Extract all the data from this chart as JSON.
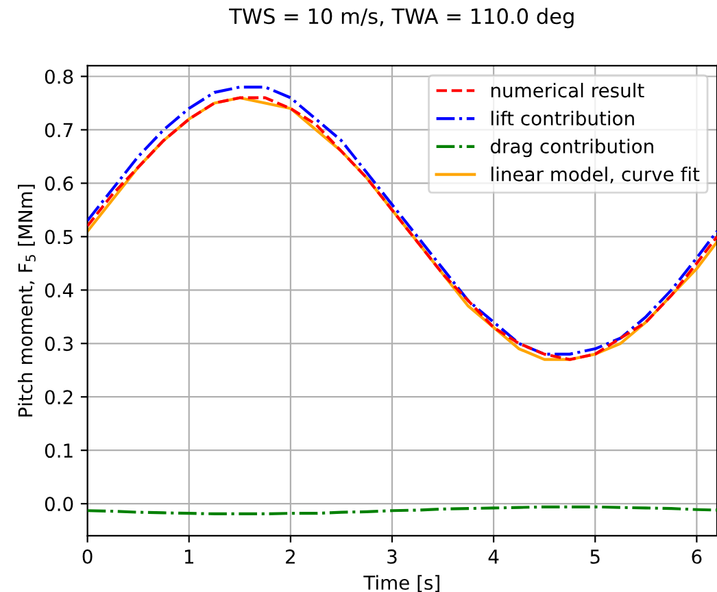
{
  "chart_data": {
    "type": "line",
    "title": "TWS = 10 m/s, TWA = 110.0 deg",
    "xlabel": "Time [s]",
    "ylabel": "Pitch moment, F$_{5}$ [MNm]",
    "x": [
      0,
      0.25,
      0.5,
      0.75,
      1.0,
      1.25,
      1.5,
      1.75,
      2.0,
      2.25,
      2.5,
      2.75,
      3.0,
      3.25,
      3.5,
      3.75,
      4.0,
      4.25,
      4.5,
      4.75,
      5.0,
      5.25,
      5.5,
      5.75,
      6.0,
      6.2
    ],
    "series": [
      {
        "name": "numerical result",
        "color": "#ff0000",
        "line_style": "dashed",
        "values": [
          0.52,
          0.58,
          0.63,
          0.68,
          0.72,
          0.75,
          0.76,
          0.76,
          0.74,
          0.71,
          0.66,
          0.61,
          0.55,
          0.49,
          0.43,
          0.38,
          0.33,
          0.3,
          0.28,
          0.27,
          0.28,
          0.31,
          0.34,
          0.39,
          0.45,
          0.5
        ]
      },
      {
        "name": "lift contribution",
        "color": "#0000ff",
        "line_style": "dashdot",
        "values": [
          0.53,
          0.59,
          0.65,
          0.7,
          0.74,
          0.77,
          0.78,
          0.78,
          0.76,
          0.72,
          0.68,
          0.62,
          0.56,
          0.5,
          0.44,
          0.38,
          0.34,
          0.3,
          0.28,
          0.28,
          0.29,
          0.31,
          0.35,
          0.4,
          0.46,
          0.51
        ]
      },
      {
        "name": "drag contribution",
        "color": "#008000",
        "line_style": "dashdot",
        "values": [
          -0.013,
          -0.014,
          -0.016,
          -0.017,
          -0.018,
          -0.019,
          -0.019,
          -0.019,
          -0.018,
          -0.018,
          -0.016,
          -0.015,
          -0.013,
          -0.012,
          -0.01,
          -0.009,
          -0.008,
          -0.007,
          -0.006,
          -0.006,
          -0.006,
          -0.007,
          -0.008,
          -0.009,
          -0.011,
          -0.012
        ]
      },
      {
        "name": "linear model, curve fit",
        "color": "#ffa500",
        "line_style": "solid",
        "values": [
          0.51,
          0.57,
          0.63,
          0.68,
          0.72,
          0.75,
          0.76,
          0.75,
          0.74,
          0.7,
          0.66,
          0.61,
          0.55,
          0.49,
          0.43,
          0.37,
          0.33,
          0.29,
          0.27,
          0.27,
          0.28,
          0.3,
          0.34,
          0.39,
          0.44,
          0.49
        ]
      }
    ],
    "xlim": [
      0,
      6.2
    ],
    "xticks": [
      0,
      1,
      2,
      3,
      4,
      5,
      6
    ],
    "ylim": [
      -0.06,
      0.82
    ],
    "yticks": [
      {
        "value": 0,
        "label": "0.0"
      },
      0.1,
      0.2,
      0.3,
      0.4,
      0.5,
      0.6,
      0.7,
      0.8
    ],
    "grid": true,
    "legend": "top right",
    "marker": "none"
  }
}
